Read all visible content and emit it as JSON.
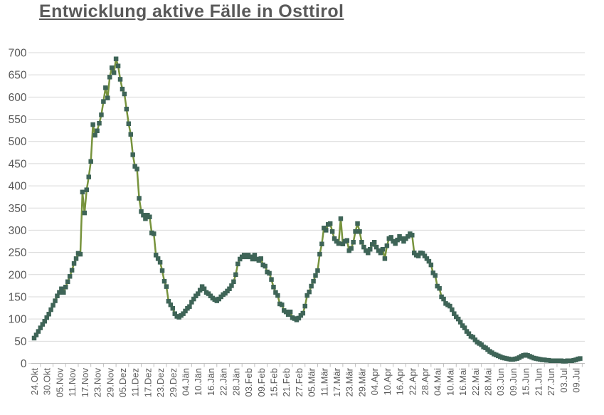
{
  "chart_data": {
    "type": "line",
    "title": "Entwicklung aktive Fälle in Osttirol",
    "series_name": "aktive Fälle",
    "legend": "none",
    "grid": "horizontal",
    "marker_shape": "square",
    "line_color": "#77933C",
    "marker_color": "#3E6457",
    "axis_label_color": "#595959",
    "gridline_color": "#D9D9D9",
    "axis_line_color": "#BFBFBF",
    "ylim": [
      0,
      700
    ],
    "ytick_step": 50,
    "y_tick_labels": [
      "0",
      "50",
      "100",
      "150",
      "200",
      "250",
      "300",
      "350",
      "400",
      "450",
      "500",
      "550",
      "600",
      "650",
      "700"
    ],
    "x_tick_interval_days": 6,
    "x_tick_labels": [
      "24.Okt",
      "30.Okt",
      "05.Nov",
      "11.Nov",
      "17.Nov",
      "23.Nov",
      "29.Nov",
      "05.Dez",
      "11.Dez",
      "17.Dez",
      "23.Dez",
      "29.Dez",
      "04.Jän",
      "10.Jän",
      "16.Jän",
      "22.Jän",
      "28.Jän",
      "03.Feb",
      "09.Feb",
      "15.Feb",
      "21.Feb",
      "27.Feb",
      "05.Mär",
      "11.Mär",
      "17.Mär",
      "23.Mär",
      "29.Mär",
      "04.Apr",
      "10.Apr",
      "16.Apr",
      "22.Apr",
      "28.Apr",
      "04.Mai",
      "10.Mai",
      "16.Mai",
      "22.Mai",
      "28.Mai",
      "03.Jun",
      "09.Jun",
      "15.Jun",
      "21.Jun",
      "27.Jun",
      "03.Jul",
      "09.Jul"
    ],
    "x_start_label": "24.Okt",
    "values": [
      57,
      64,
      72,
      80,
      88,
      95,
      103,
      111,
      121,
      131,
      141,
      152,
      160,
      168,
      160,
      172,
      184,
      196,
      210,
      225,
      236,
      248,
      246,
      386,
      339,
      391,
      420,
      455,
      538,
      514,
      524,
      541,
      560,
      590,
      621,
      598,
      645,
      666,
      655,
      686,
      670,
      640,
      618,
      607,
      573,
      540,
      516,
      470,
      444,
      438,
      372,
      342,
      334,
      326,
      334,
      330,
      294,
      292,
      244,
      236,
      228,
      209,
      185,
      173,
      140,
      132,
      124,
      112,
      106,
      104,
      108,
      112,
      118,
      124,
      128,
      138,
      145,
      152,
      157,
      165,
      173,
      168,
      160,
      157,
      152,
      147,
      144,
      141,
      145,
      150,
      155,
      158,
      163,
      168,
      175,
      184,
      200,
      224,
      235,
      240,
      244,
      240,
      244,
      240,
      235,
      244,
      235,
      232,
      236,
      222,
      219,
      206,
      203,
      189,
      172,
      160,
      153,
      134,
      132,
      119,
      116,
      110,
      116,
      103,
      101,
      98,
      102,
      108,
      113,
      129,
      153,
      161,
      174,
      185,
      198,
      209,
      246,
      269,
      305,
      300,
      313,
      315,
      297,
      281,
      275,
      270,
      326,
      269,
      275,
      277,
      254,
      259,
      273,
      297,
      315,
      297,
      273,
      262,
      254,
      249,
      257,
      268,
      273,
      262,
      254,
      249,
      257,
      236,
      265,
      281,
      284,
      275,
      270,
      278,
      286,
      281,
      275,
      281,
      286,
      292,
      289,
      249,
      244,
      242,
      249,
      248,
      242,
      236,
      230,
      222,
      204,
      198,
      174,
      169,
      150,
      145,
      135,
      132,
      129,
      121,
      112,
      105,
      100,
      93,
      85,
      80,
      72,
      67,
      61,
      59,
      53,
      48,
      45,
      42,
      37,
      35,
      31,
      27,
      24,
      21,
      19,
      17,
      15,
      13,
      12,
      11,
      10,
      9,
      9,
      10,
      11,
      13,
      16,
      18,
      19,
      18,
      16,
      14,
      12,
      11,
      10,
      9,
      8,
      8,
      7,
      7,
      6,
      6,
      6,
      6,
      6,
      6,
      5,
      5,
      6,
      6,
      6,
      7,
      8,
      10,
      11
    ]
  }
}
